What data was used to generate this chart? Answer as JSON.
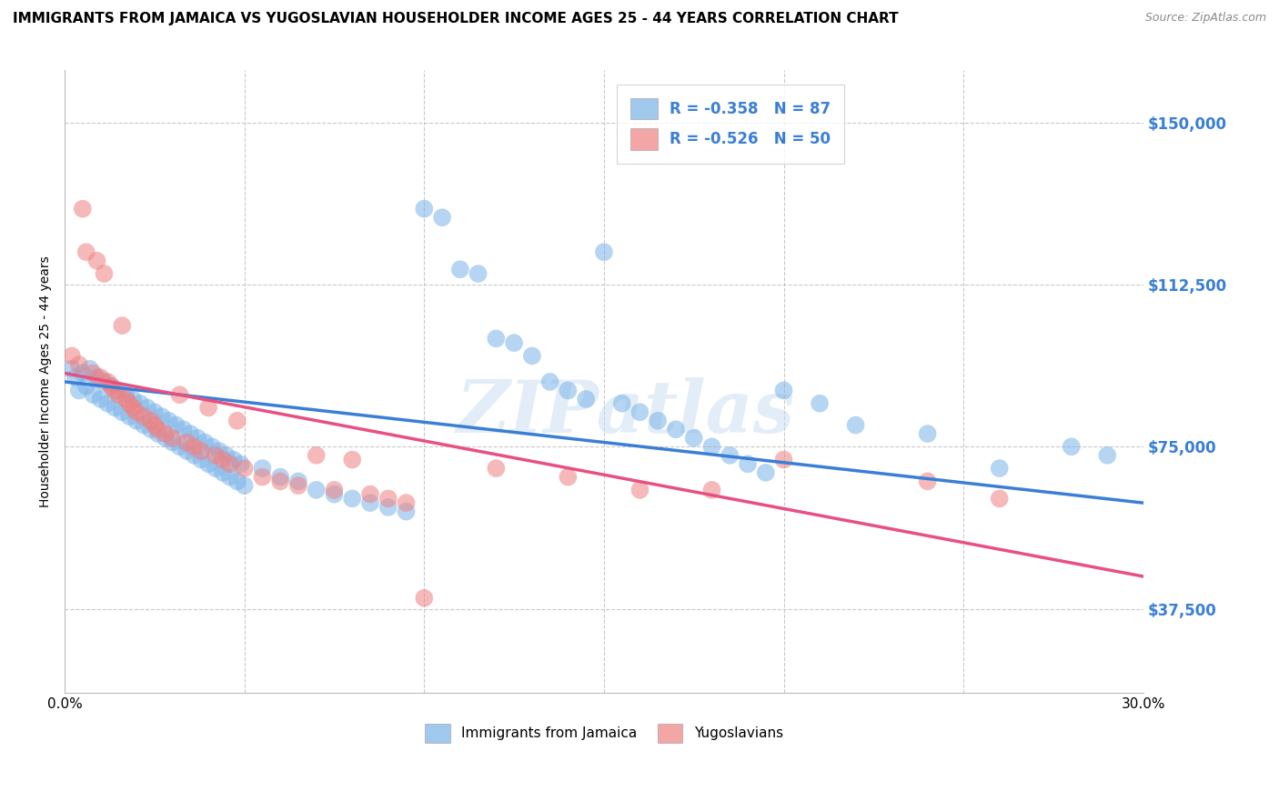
{
  "title": "IMMIGRANTS FROM JAMAICA VS YUGOSLAVIAN HOUSEHOLDER INCOME AGES 25 - 44 YEARS CORRELATION CHART",
  "source": "Source: ZipAtlas.com",
  "ylabel": "Householder Income Ages 25 - 44 years",
  "ytick_labels": [
    "$37,500",
    "$75,000",
    "$112,500",
    "$150,000"
  ],
  "ytick_values": [
    37500,
    75000,
    112500,
    150000
  ],
  "ylim": [
    18000,
    162000
  ],
  "xlim": [
    0.0,
    0.3
  ],
  "watermark": "ZIPatlas",
  "jamaica_color": "#7ab3e8",
  "yugoslavian_color": "#f08080",
  "jamaica_R": -0.358,
  "yugoslavian_R": -0.526,
  "jamaica_N": 87,
  "yugoslavian_N": 50,
  "jamaica_line": [
    90000,
    62000
  ],
  "yugoslavian_line": [
    92000,
    45000
  ],
  "jamaica_scatter": [
    [
      0.002,
      93000
    ],
    [
      0.003,
      91000
    ],
    [
      0.004,
      88000
    ],
    [
      0.005,
      92000
    ],
    [
      0.006,
      89000
    ],
    [
      0.007,
      93000
    ],
    [
      0.008,
      87000
    ],
    [
      0.009,
      91000
    ],
    [
      0.01,
      86000
    ],
    [
      0.011,
      90000
    ],
    [
      0.012,
      85000
    ],
    [
      0.013,
      89000
    ],
    [
      0.014,
      84000
    ],
    [
      0.015,
      88000
    ],
    [
      0.016,
      83000
    ],
    [
      0.017,
      87000
    ],
    [
      0.018,
      82000
    ],
    [
      0.019,
      86000
    ],
    [
      0.02,
      81000
    ],
    [
      0.021,
      85000
    ],
    [
      0.022,
      80000
    ],
    [
      0.023,
      84000
    ],
    [
      0.024,
      79000
    ],
    [
      0.025,
      83000
    ],
    [
      0.026,
      78000
    ],
    [
      0.027,
      82000
    ],
    [
      0.028,
      77000
    ],
    [
      0.029,
      81000
    ],
    [
      0.03,
      76000
    ],
    [
      0.031,
      80000
    ],
    [
      0.032,
      75000
    ],
    [
      0.033,
      79000
    ],
    [
      0.034,
      74000
    ],
    [
      0.035,
      78000
    ],
    [
      0.036,
      73000
    ],
    [
      0.037,
      77000
    ],
    [
      0.038,
      72000
    ],
    [
      0.039,
      76000
    ],
    [
      0.04,
      71000
    ],
    [
      0.041,
      75000
    ],
    [
      0.042,
      70000
    ],
    [
      0.043,
      74000
    ],
    [
      0.044,
      69000
    ],
    [
      0.045,
      73000
    ],
    [
      0.046,
      68000
    ],
    [
      0.047,
      72000
    ],
    [
      0.048,
      67000
    ],
    [
      0.049,
      71000
    ],
    [
      0.05,
      66000
    ],
    [
      0.055,
      70000
    ],
    [
      0.06,
      68000
    ],
    [
      0.065,
      67000
    ],
    [
      0.07,
      65000
    ],
    [
      0.075,
      64000
    ],
    [
      0.08,
      63000
    ],
    [
      0.085,
      62000
    ],
    [
      0.09,
      61000
    ],
    [
      0.095,
      60000
    ],
    [
      0.1,
      130000
    ],
    [
      0.105,
      128000
    ],
    [
      0.11,
      116000
    ],
    [
      0.115,
      115000
    ],
    [
      0.12,
      100000
    ],
    [
      0.125,
      99000
    ],
    [
      0.13,
      96000
    ],
    [
      0.135,
      90000
    ],
    [
      0.14,
      88000
    ],
    [
      0.145,
      86000
    ],
    [
      0.15,
      120000
    ],
    [
      0.155,
      85000
    ],
    [
      0.16,
      83000
    ],
    [
      0.165,
      81000
    ],
    [
      0.17,
      79000
    ],
    [
      0.175,
      77000
    ],
    [
      0.18,
      75000
    ],
    [
      0.185,
      73000
    ],
    [
      0.19,
      71000
    ],
    [
      0.195,
      69000
    ],
    [
      0.2,
      88000
    ],
    [
      0.21,
      85000
    ],
    [
      0.22,
      80000
    ],
    [
      0.24,
      78000
    ],
    [
      0.26,
      70000
    ],
    [
      0.28,
      75000
    ],
    [
      0.29,
      73000
    ]
  ],
  "yugoslavian_scatter": [
    [
      0.002,
      96000
    ],
    [
      0.004,
      94000
    ],
    [
      0.005,
      130000
    ],
    [
      0.006,
      120000
    ],
    [
      0.008,
      92000
    ],
    [
      0.009,
      118000
    ],
    [
      0.01,
      91000
    ],
    [
      0.011,
      115000
    ],
    [
      0.012,
      90000
    ],
    [
      0.013,
      89000
    ],
    [
      0.014,
      88000
    ],
    [
      0.015,
      87000
    ],
    [
      0.016,
      103000
    ],
    [
      0.017,
      86000
    ],
    [
      0.018,
      85000
    ],
    [
      0.019,
      84000
    ],
    [
      0.02,
      83000
    ],
    [
      0.022,
      82000
    ],
    [
      0.024,
      81000
    ],
    [
      0.025,
      80000
    ],
    [
      0.026,
      79000
    ],
    [
      0.028,
      78000
    ],
    [
      0.03,
      77000
    ],
    [
      0.032,
      87000
    ],
    [
      0.034,
      76000
    ],
    [
      0.036,
      75000
    ],
    [
      0.038,
      74000
    ],
    [
      0.04,
      84000
    ],
    [
      0.042,
      73000
    ],
    [
      0.044,
      72000
    ],
    [
      0.046,
      71000
    ],
    [
      0.048,
      81000
    ],
    [
      0.05,
      70000
    ],
    [
      0.055,
      68000
    ],
    [
      0.06,
      67000
    ],
    [
      0.065,
      66000
    ],
    [
      0.07,
      73000
    ],
    [
      0.075,
      65000
    ],
    [
      0.08,
      72000
    ],
    [
      0.085,
      64000
    ],
    [
      0.09,
      63000
    ],
    [
      0.095,
      62000
    ],
    [
      0.1,
      40000
    ],
    [
      0.12,
      70000
    ],
    [
      0.14,
      68000
    ],
    [
      0.16,
      65000
    ],
    [
      0.18,
      65000
    ],
    [
      0.2,
      72000
    ],
    [
      0.24,
      67000
    ],
    [
      0.26,
      63000
    ]
  ],
  "title_fontsize": 11,
  "axis_label_fontsize": 10,
  "tick_fontsize": 10,
  "legend_fontsize": 11
}
